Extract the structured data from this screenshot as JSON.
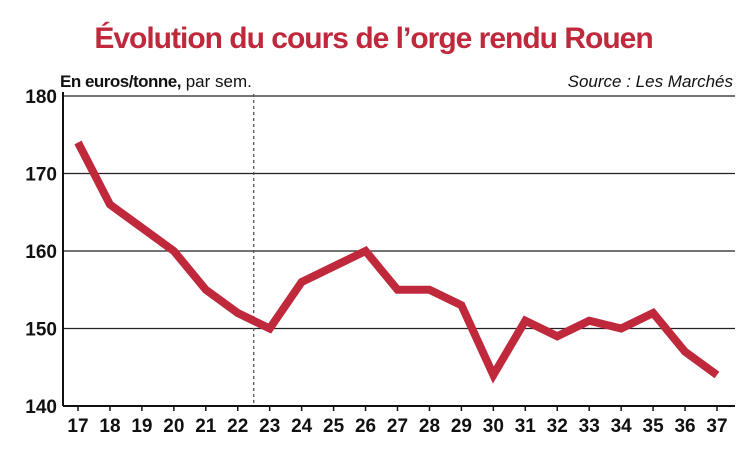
{
  "header": {
    "title": "Évolution du cours de l’orge rendu Rouen",
    "unit_bold": "En euros/tonne,",
    "unit_rest": " par sem.",
    "source": "Source : Les Marchés"
  },
  "colors": {
    "line": "#c0283c",
    "title": "#c0283c",
    "grid": "#222222",
    "axis": "#111111",
    "divider": "#555555"
  },
  "chart_data": {
    "type": "line",
    "title": "Évolution du cours de l’orge rendu Rouen",
    "ylabel": "En euros/tonne, par sem.",
    "xlabel": "",
    "x": [
      "17",
      "18",
      "19",
      "20",
      "21",
      "22",
      "23",
      "24",
      "25",
      "26",
      "27",
      "28",
      "29",
      "30",
      "31",
      "32",
      "33",
      "34",
      "35",
      "36",
      "37"
    ],
    "series": [
      {
        "values": [
          174,
          166,
          163,
          160,
          155,
          152,
          150,
          156,
          158,
          160,
          155,
          155,
          153,
          144,
          151,
          149,
          151,
          150,
          152,
          147,
          144
        ]
      }
    ],
    "ylim": [
      140,
      180
    ],
    "yticks": [
      140,
      150,
      160,
      170,
      180
    ],
    "grid": "horizontal",
    "divider_after": "22",
    "legend": "none"
  }
}
